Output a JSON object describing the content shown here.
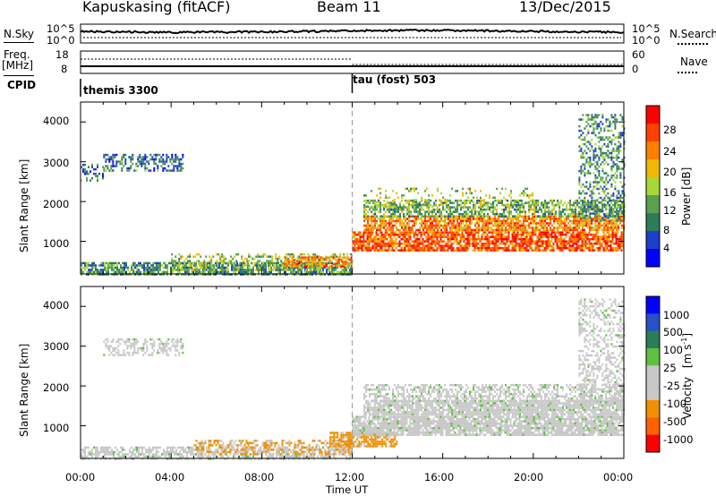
{
  "header": {
    "title": "Kapuskasing (fitACF)",
    "beam": "Beam 11",
    "date": "13/Dec/2015"
  },
  "top_panels": {
    "nsky_label": "N.Sky",
    "nsky_ticks": [
      "10^5",
      "10^0"
    ],
    "nsearch_label": "N.Search",
    "nsearch_ticks": [
      "10^5",
      "10^0"
    ],
    "freq_label": "Freq.",
    "freq_unit": "[MHz]",
    "freq_ticks": [
      "18",
      "8"
    ],
    "nave_label": "Nave",
    "nave_ticks": [
      "60",
      "0"
    ],
    "cpid_label": "CPID",
    "cpid_segments": [
      {
        "name": "themis 3300",
        "start_hour": 0,
        "end_hour": 12
      },
      {
        "name": "tau (fost) 503",
        "start_hour": 12,
        "end_hour": 24
      }
    ]
  },
  "colors": {
    "power": [
      "#0000ff",
      "#1e3fc8",
      "#2e7d5a",
      "#5aa050",
      "#a8d838",
      "#f0b800",
      "#ff8000",
      "#ff4000",
      "#ff0000"
    ],
    "velocity": [
      "#0000ff",
      "#2850c8",
      "#2e7d5a",
      "#5fc040",
      "#c8c8c8",
      "#c8c8c8",
      "#f09000",
      "#ff6000",
      "#ff0000"
    ],
    "ground_scatter": "#b0b0b0"
  },
  "power_colorbar": {
    "label": "Power [dB]",
    "ticks": [
      "28",
      "24",
      "20",
      "16",
      "12",
      "8",
      "4"
    ]
  },
  "velocity_colorbar": {
    "label": "Velocity",
    "unit": "[m s",
    "unit_exp": "-1",
    "unit_close": "]",
    "ticks": [
      "1000",
      "500",
      "100",
      "25",
      "-25",
      "-100",
      "-500",
      "-1000"
    ]
  },
  "xaxis": {
    "label": "Time UT",
    "ticks": [
      "00:00",
      "04:00",
      "08:00",
      "12:00",
      "16:00",
      "20:00",
      "00:00"
    ]
  },
  "yaxis": {
    "label": "Slant Range [km]",
    "ticks": [
      "4000",
      "3000",
      "2000",
      "1000"
    ]
  },
  "chart_data": [
    {
      "type": "heatmap",
      "title": "Power",
      "xlabel": "Time UT",
      "ylabel": "Slant Range [km]",
      "xlim_hours": [
        0,
        24
      ],
      "ylim_km": [
        180,
        4500
      ],
      "colorbar": {
        "label": "Power [dB]",
        "range": [
          0,
          30
        ]
      },
      "regions": [
        {
          "t": [
            0.0,
            1.0
          ],
          "r": [
            2500,
            2950
          ],
          "value": 8,
          "density": 0.35
        },
        {
          "t": [
            1.0,
            4.5
          ],
          "r": [
            2750,
            3200
          ],
          "value": 8,
          "density": 0.5
        },
        {
          "t": [
            0.0,
            12.0
          ],
          "r": [
            180,
            480
          ],
          "value": 10,
          "density": 0.75
        },
        {
          "t": [
            4.0,
            12.0
          ],
          "r": [
            300,
            700
          ],
          "value": 14,
          "density": 0.35
        },
        {
          "t": [
            9.0,
            12.0
          ],
          "r": [
            350,
            620
          ],
          "value": 22,
          "density": 0.55
        },
        {
          "t": [
            12.0,
            24.0
          ],
          "r": [
            780,
            1250
          ],
          "value": 24,
          "density": 0.8
        },
        {
          "t": [
            12.5,
            24.0
          ],
          "r": [
            1300,
            1650
          ],
          "value": 22,
          "density": 0.8
        },
        {
          "t": [
            12.5,
            24.0
          ],
          "r": [
            1650,
            2050
          ],
          "value": 12,
          "density": 0.6
        },
        {
          "t": [
            12.5,
            20.0
          ],
          "r": [
            1850,
            2350
          ],
          "value": 14,
          "density": 0.2
        },
        {
          "t": [
            22.0,
            24.0
          ],
          "r": [
            1500,
            4200
          ],
          "value": 10,
          "density": 0.4
        }
      ]
    },
    {
      "type": "heatmap",
      "title": "Velocity",
      "xlabel": "Time UT",
      "ylabel": "Slant Range [km]",
      "xlim_hours": [
        0,
        24
      ],
      "ylim_km": [
        180,
        4500
      ],
      "colorbar": {
        "label": "Velocity [m s-1]",
        "levels": [
          -1000,
          -500,
          -100,
          -25,
          25,
          100,
          500,
          1000
        ]
      },
      "regions": [
        {
          "t": [
            1.0,
            4.5
          ],
          "r": [
            2750,
            3200
          ],
          "value": 0,
          "density": 0.5
        },
        {
          "t": [
            0.0,
            12.0
          ],
          "r": [
            180,
            480
          ],
          "value": 0,
          "density": 0.6
        },
        {
          "t": [
            5.0,
            12.0
          ],
          "r": [
            300,
            650
          ],
          "value": -100,
          "density": 0.5
        },
        {
          "t": [
            11.0,
            14.0
          ],
          "r": [
            500,
            850
          ],
          "value": -120,
          "density": 0.8
        },
        {
          "t": [
            12.0,
            24.0
          ],
          "r": [
            780,
            1250
          ],
          "value": 0,
          "density": 0.85
        },
        {
          "t": [
            12.5,
            24.0
          ],
          "r": [
            1300,
            1650
          ],
          "value": 0,
          "density": 0.85
        },
        {
          "t": [
            12.5,
            24.0
          ],
          "r": [
            1650,
            2050
          ],
          "value": 0,
          "density": 0.5
        },
        {
          "t": [
            22.0,
            24.0
          ],
          "r": [
            1500,
            4200
          ],
          "value": 0,
          "density": 0.4
        }
      ]
    }
  ]
}
